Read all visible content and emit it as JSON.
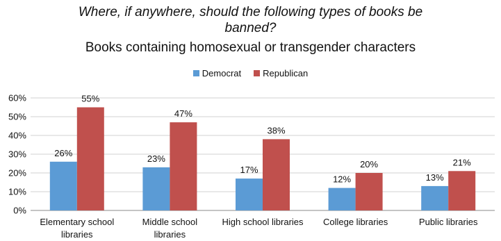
{
  "chart_data": {
    "type": "bar",
    "title_lines": [
      "Where, if anywhere, should the following types of books be",
      "banned?"
    ],
    "subtitle": "Books containing homosexual or transgender characters",
    "categories": [
      [
        "Elementary school",
        "libraries"
      ],
      [
        "Middle school",
        "libraries"
      ],
      [
        "High school libraries"
      ],
      [
        "College libraries"
      ],
      [
        "Public libraries"
      ]
    ],
    "series": [
      {
        "name": "Democrat",
        "color": "#5b9bd5",
        "values": [
          26,
          23,
          17,
          12,
          13
        ],
        "labels": [
          "26%",
          "23%",
          "17%",
          "12%",
          "13%"
        ]
      },
      {
        "name": "Republican",
        "color": "#c0504d",
        "values": [
          55,
          47,
          38,
          20,
          21
        ],
        "labels": [
          "55%",
          "47%",
          "38%",
          "20%",
          "21%"
        ]
      }
    ],
    "ylim": [
      0,
      60
    ],
    "yticks": [
      "0%",
      "10%",
      "20%",
      "30%",
      "40%",
      "50%",
      "60%"
    ],
    "grid": true,
    "legend_position": "top-center"
  }
}
